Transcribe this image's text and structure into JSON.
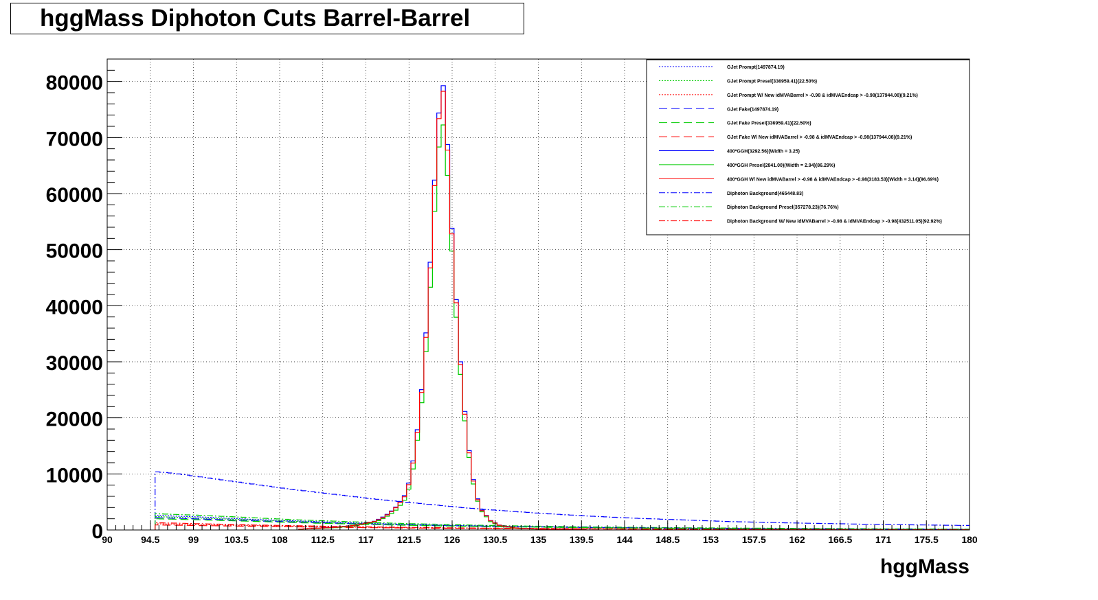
{
  "chart_data": {
    "type": "line",
    "title": "hggMass Diphoton Cuts Barrel-Barrel",
    "xlabel": "hggMass",
    "ylabel": "",
    "xlim": [
      90,
      180
    ],
    "ylim": [
      0,
      84000
    ],
    "grid": true,
    "legend_position": "top-right",
    "x_ticks": [
      "90",
      "94.5",
      "99",
      "103.5",
      "108",
      "112.5",
      "117",
      "121.5",
      "126",
      "130.5",
      "135",
      "139.5",
      "144",
      "148.5",
      "153",
      "157.5",
      "162",
      "166.5",
      "171",
      "175.5",
      "180"
    ],
    "y_ticks": [
      "0",
      "10000",
      "20000",
      "30000",
      "40000",
      "50000",
      "60000",
      "70000",
      "80000"
    ],
    "y_tick_values": [
      0,
      10000,
      20000,
      30000,
      40000,
      50000,
      60000,
      70000,
      80000
    ],
    "legend": [
      {
        "label": "GJet Prompt(1497874.19)",
        "color": "#0000ff",
        "style": "dotted"
      },
      {
        "label": "GJet Prompt Presel(336959.41)(22.50%)",
        "color": "#00cc00",
        "style": "dotted"
      },
      {
        "label": "GJet Prompt W/ New idMVABarrel > -0.98 & idMVAEndcap > -0.98(137944.08)(9.21%)",
        "color": "#ff0000",
        "style": "dotted"
      },
      {
        "label": "GJet Fake(1497874.19)",
        "color": "#0000ff",
        "style": "dashed"
      },
      {
        "label": "GJet Fake Presel(336959.41)(22.50%)",
        "color": "#00cc00",
        "style": "dashed"
      },
      {
        "label": "GJet Fake W/ New idMVABarrel > -0.98 & idMVAEndcap > -0.98(137944.08)(9.21%)",
        "color": "#ff0000",
        "style": "dashed"
      },
      {
        "label": "400*GGH(3292.56)(Width = 3.25)",
        "color": "#0000ff",
        "style": "solid"
      },
      {
        "label": "400*GGH Presel(2841.00)(Width = 2.94)(86.29%)",
        "color": "#00cc00",
        "style": "solid"
      },
      {
        "label": "400*GGH W/ New idMVABarrel > -0.98 & idMVAEndcap > -0.98(3183.53)(Width = 3.14)(96.69%)",
        "color": "#ff0000",
        "style": "solid"
      },
      {
        "label": "Diphoton Background(465448.83)",
        "color": "#0000ff",
        "style": "dashdot"
      },
      {
        "label": "Diphoton Background Presel(357278.23)(76.76%)",
        "color": "#00cc00",
        "style": "dashdot"
      },
      {
        "label": "Diphoton Background W/ New idMVABarrel > -0.98 & idMVAEndcap > -0.98(432511.05)(92.92%)",
        "color": "#ff0000",
        "style": "dashdot"
      }
    ],
    "series": [
      {
        "name": "Diphoton Background(465448.83)",
        "color": "#0000ff",
        "style": "dashdot",
        "x": [
          95,
          97,
          100,
          103,
          106,
          109,
          112,
          115,
          118,
          121,
          124,
          127,
          130,
          135,
          140,
          145,
          150,
          155,
          160,
          165,
          170,
          175,
          180
        ],
        "values": [
          10400,
          10100,
          9400,
          8700,
          8000,
          7300,
          6700,
          6100,
          5500,
          5000,
          4500,
          4000,
          3600,
          3000,
          2500,
          2100,
          1800,
          1500,
          1300,
          1150,
          1000,
          900,
          800
        ]
      },
      {
        "name": "Diphoton Background Presel(357278.23)(76.76%)",
        "color": "#00cc00",
        "style": "dashdot",
        "x": [
          95,
          100,
          105,
          110,
          115,
          120,
          125,
          130,
          140,
          150,
          160,
          170,
          180
        ],
        "values": [
          2900,
          2600,
          2200,
          1800,
          1500,
          1200,
          1000,
          800,
          550,
          400,
          300,
          220,
          160
        ]
      },
      {
        "name": "Diphoton Background W/ New idMVABarrel > -0.98 & idMVAEndcap > -0.98(432511.05)(92.92%)",
        "color": "#ff0000",
        "style": "dashdot",
        "x": [
          95,
          100,
          105,
          110,
          115,
          120,
          125,
          130,
          140,
          150,
          160,
          170,
          180
        ],
        "values": [
          1300,
          1100,
          900,
          750,
          600,
          500,
          400,
          320,
          220,
          160,
          120,
          90,
          70
        ]
      },
      {
        "name": "GJet Prompt(1497874.19)",
        "color": "#0000ff",
        "style": "dotted",
        "x": [
          95,
          100,
          105,
          110,
          115,
          120,
          125,
          130,
          140,
          150,
          160,
          170,
          180
        ],
        "values": [
          2600,
          2300,
          1900,
          1600,
          1300,
          1050,
          850,
          700,
          480,
          330,
          230,
          160,
          110
        ]
      },
      {
        "name": "GJet Prompt Presel(336959.41)(22.50%)",
        "color": "#00cc00",
        "style": "dotted",
        "x": [
          95,
          100,
          105,
          110,
          115,
          120,
          125,
          130,
          140,
          150,
          160,
          170,
          180
        ],
        "values": [
          2400,
          2100,
          1800,
          1500,
          1200,
          1000,
          800,
          650,
          450,
          310,
          215,
          150,
          100
        ]
      },
      {
        "name": "GJet Prompt W/ New idMVABarrel > -0.98 & idMVAEndcap > -0.98(137944.08)(9.21%)",
        "color": "#ff0000",
        "style": "dotted",
        "x": [
          95,
          100,
          105,
          110,
          115,
          120,
          125,
          130,
          140,
          150,
          160,
          170,
          180
        ],
        "values": [
          1100,
          950,
          800,
          650,
          530,
          430,
          350,
          290,
          200,
          140,
          100,
          70,
          50
        ]
      },
      {
        "name": "GJet Fake(1497874.19)",
        "color": "#0000ff",
        "style": "dashed",
        "x": [
          95,
          100,
          105,
          110,
          115,
          120,
          125,
          130,
          140,
          150,
          160,
          170,
          180
        ],
        "values": [
          2200,
          1950,
          1650,
          1400,
          1150,
          950,
          780,
          640,
          440,
          300,
          210,
          145,
          100
        ]
      },
      {
        "name": "GJet Fake Presel(336959.41)(22.50%)",
        "color": "#00cc00",
        "style": "dashed",
        "x": [
          95,
          100,
          105,
          110,
          115,
          120,
          125,
          130,
          140,
          150,
          160,
          170,
          180
        ],
        "values": [
          2000,
          1800,
          1550,
          1300,
          1080,
          880,
          720,
          590,
          410,
          280,
          195,
          135,
          95
        ]
      },
      {
        "name": "GJet Fake W/ New idMVABarrel > -0.98 & idMVAEndcap > -0.98(137944.08)(9.21%)",
        "color": "#ff0000",
        "style": "dashed",
        "x": [
          95,
          100,
          105,
          110,
          115,
          120,
          125,
          130,
          140,
          150,
          160,
          170,
          180
        ],
        "values": [
          900,
          780,
          660,
          550,
          450,
          370,
          300,
          250,
          170,
          120,
          85,
          60,
          42
        ]
      },
      {
        "name": "400*GGH(3292.56)(Width = 3.25)",
        "color": "#0000ff",
        "style": "solid",
        "x": [
          110,
          114,
          116,
          118,
          119,
          120,
          121,
          121.5,
          122,
          122.5,
          123,
          123.5,
          124,
          124.3,
          124.6,
          125,
          125.3,
          125.6,
          126,
          126.5,
          127,
          127.5,
          128,
          128.5,
          129,
          130,
          131,
          133,
          136,
          140
        ],
        "values": [
          150,
          500,
          900,
          1600,
          2500,
          3800,
          6000,
          8500,
          13000,
          19500,
          28000,
          41000,
          56000,
          67000,
          74000,
          80000,
          77000,
          66000,
          53000,
          39000,
          27000,
          18000,
          11000,
          6500,
          3800,
          1700,
          800,
          300,
          100,
          30
        ]
      },
      {
        "name": "400*GGH Presel(2841.00)(Width = 2.94)(86.29%)",
        "color": "#00cc00",
        "style": "solid",
        "x": [
          110,
          114,
          116,
          118,
          119,
          120,
          121,
          121.5,
          122,
          122.5,
          123,
          123.5,
          124,
          124.3,
          124.6,
          125,
          125.3,
          125.6,
          126,
          126.5,
          127,
          127.5,
          128,
          128.5,
          129,
          130,
          131,
          133,
          136,
          140
        ],
        "values": [
          130,
          430,
          780,
          1400,
          2200,
          3300,
          5200,
          7400,
          11500,
          17500,
          25500,
          37000,
          51000,
          61000,
          68000,
          73000,
          70000,
          61000,
          49000,
          36000,
          25000,
          16500,
          10000,
          6000,
          3500,
          1500,
          700,
          260,
          90,
          25
        ]
      },
      {
        "name": "400*GGH W/ New idMVABarrel > -0.98 & idMVAEndcap > -0.98(3183.53)(Width = 3.14)(96.69%)",
        "color": "#ff0000",
        "style": "solid",
        "x": [
          110,
          114,
          116,
          118,
          119,
          120,
          121,
          121.5,
          122,
          122.5,
          123,
          123.5,
          124,
          124.3,
          124.6,
          125,
          125.3,
          125.6,
          126,
          126.5,
          127,
          127.5,
          128,
          128.5,
          129,
          130,
          131,
          133,
          136,
          140
        ],
        "values": [
          145,
          480,
          870,
          1550,
          2400,
          3700,
          5800,
          8200,
          12600,
          19000,
          27500,
          40000,
          55000,
          66000,
          73000,
          79000,
          76000,
          65000,
          52000,
          38500,
          26500,
          17500,
          10700,
          6300,
          3700,
          1650,
          780,
          290,
          95,
          28
        ]
      }
    ]
  }
}
